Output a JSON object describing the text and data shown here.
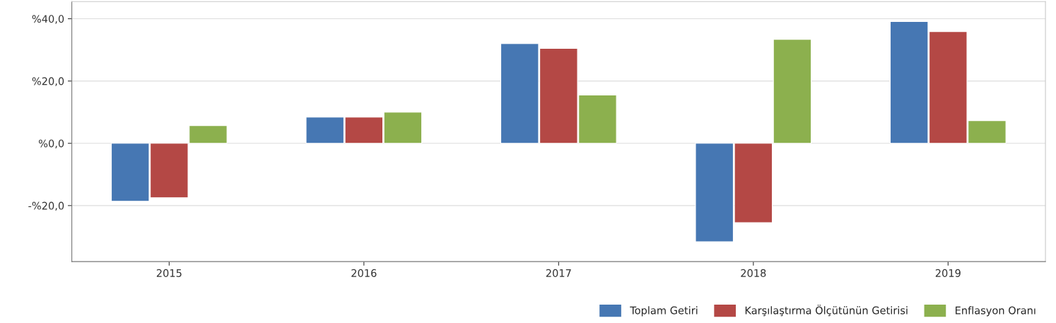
{
  "chart_data": {
    "type": "bar",
    "categories": [
      "2015",
      "2016",
      "2017",
      "2018",
      "2019"
    ],
    "series": [
      {
        "name": "Toplam Getiri",
        "color": "#4677b3",
        "values": [
          -18.6,
          8.4,
          32.0,
          -31.6,
          39.1
        ]
      },
      {
        "name": "Karşılaştırma Ölçütünün Getirisi",
        "color": "#b44845",
        "values": [
          -17.5,
          8.4,
          30.5,
          -25.5,
          35.9
        ]
      },
      {
        "name": "Enflasyon Oranı",
        "color": "#8cb04e",
        "values": [
          5.7,
          10.0,
          15.5,
          33.4,
          7.3
        ]
      }
    ],
    "ylim": [
      -38,
      45.5
    ],
    "yticks": [
      {
        "value": -20,
        "label": "-%20,0"
      },
      {
        "value": 0,
        "label": "%0,0"
      },
      {
        "value": 20,
        "label": "%20,0"
      },
      {
        "value": 40,
        "label": "%40,0"
      }
    ],
    "grid": "y",
    "legend": "bottom right"
  }
}
